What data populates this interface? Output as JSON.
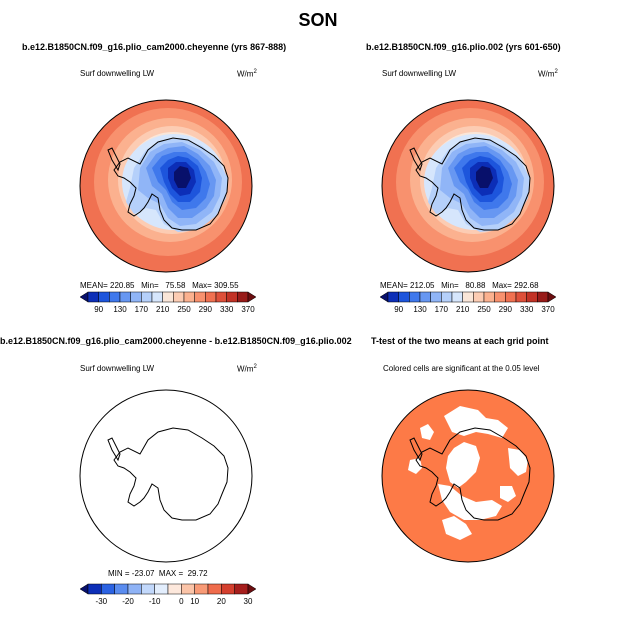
{
  "main_title": "SON",
  "colors": {
    "sig_fill": "#fd7a47",
    "outline": "#000000"
  },
  "chart_data": [
    {
      "type": "heatmap",
      "title": "b.e12.B1850CN.f09_g16.plio_cam2000.cheyenne (yrs 867-888)",
      "variable_label": "Surf downwelling LW",
      "units": "W/m",
      "units_exp": "2",
      "stats": {
        "mean": "220.85",
        "min": "75.58",
        "max": "309.55"
      },
      "stats_text": "MEAN= 220.85   Min=   75.58   Max= 309.55",
      "colorbar": {
        "ticks": [
          "90",
          "130",
          "170",
          "210",
          "250",
          "290",
          "330",
          "370"
        ],
        "colors": [
          "#08106b",
          "#0c2eb7",
          "#1d55dc",
          "#3f78ec",
          "#6797f2",
          "#90b5f7",
          "#b5d0fa",
          "#d6e6fc",
          "#fae6d8",
          "#fcccb3",
          "#fbb18f",
          "#f8916e",
          "#f07151",
          "#de503a",
          "#c23226",
          "#981b19",
          "#6b0d0f"
        ]
      }
    },
    {
      "type": "heatmap",
      "title": "b.e12.B1850CN.f09_g16.plio.002 (yrs 601-650)",
      "variable_label": "Surf downwelling LW",
      "units": "W/m",
      "units_exp": "2",
      "stats": {
        "mean": "212.05",
        "min": "80.88",
        "max": "292.68"
      },
      "stats_text": "MEAN= 212.05   Min=   80.88   Max= 292.68",
      "colorbar": {
        "ticks": [
          "90",
          "130",
          "170",
          "210",
          "250",
          "290",
          "330",
          "370"
        ],
        "colors": [
          "#08106b",
          "#0c2eb7",
          "#1d55dc",
          "#3f78ec",
          "#6797f2",
          "#90b5f7",
          "#b5d0fa",
          "#d6e6fc",
          "#fae6d8",
          "#fcccb3",
          "#fbb18f",
          "#f8916e",
          "#f07151",
          "#de503a",
          "#c23226",
          "#981b19",
          "#6b0d0f"
        ]
      }
    },
    {
      "type": "heatmap",
      "title": "b.e12.B1850CN.f09_g16.plio_cam2000.cheyenne - b.e12.B1850CN.f09_g16.plio.002",
      "variable_label": "Surf downwelling LW",
      "units": "W/m",
      "units_exp": "2",
      "stats": {
        "min": "-23.07",
        "max": "29.72"
      },
      "stats_text": "MIN = -23.07  MAX =  29.72",
      "colorbar": {
        "ticks": [
          "-30",
          "-20",
          "-10",
          "0",
          "10",
          "20",
          "30"
        ],
        "colors": [
          "#08106b",
          "#0c2eb7",
          "#2b62e2",
          "#5a8cef",
          "#8fb3f6",
          "#c2d8fb",
          "#e3eefd",
          "#fde8dc",
          "#fbc4a8",
          "#f89a76",
          "#ef6c4c",
          "#d43f2e",
          "#a61e1c",
          "#6b0d0f"
        ]
      }
    },
    {
      "type": "heatmap",
      "title": "T-test of the two means at each grid point",
      "subtitle": "Colored cells are significant at the 0.05 level"
    }
  ]
}
